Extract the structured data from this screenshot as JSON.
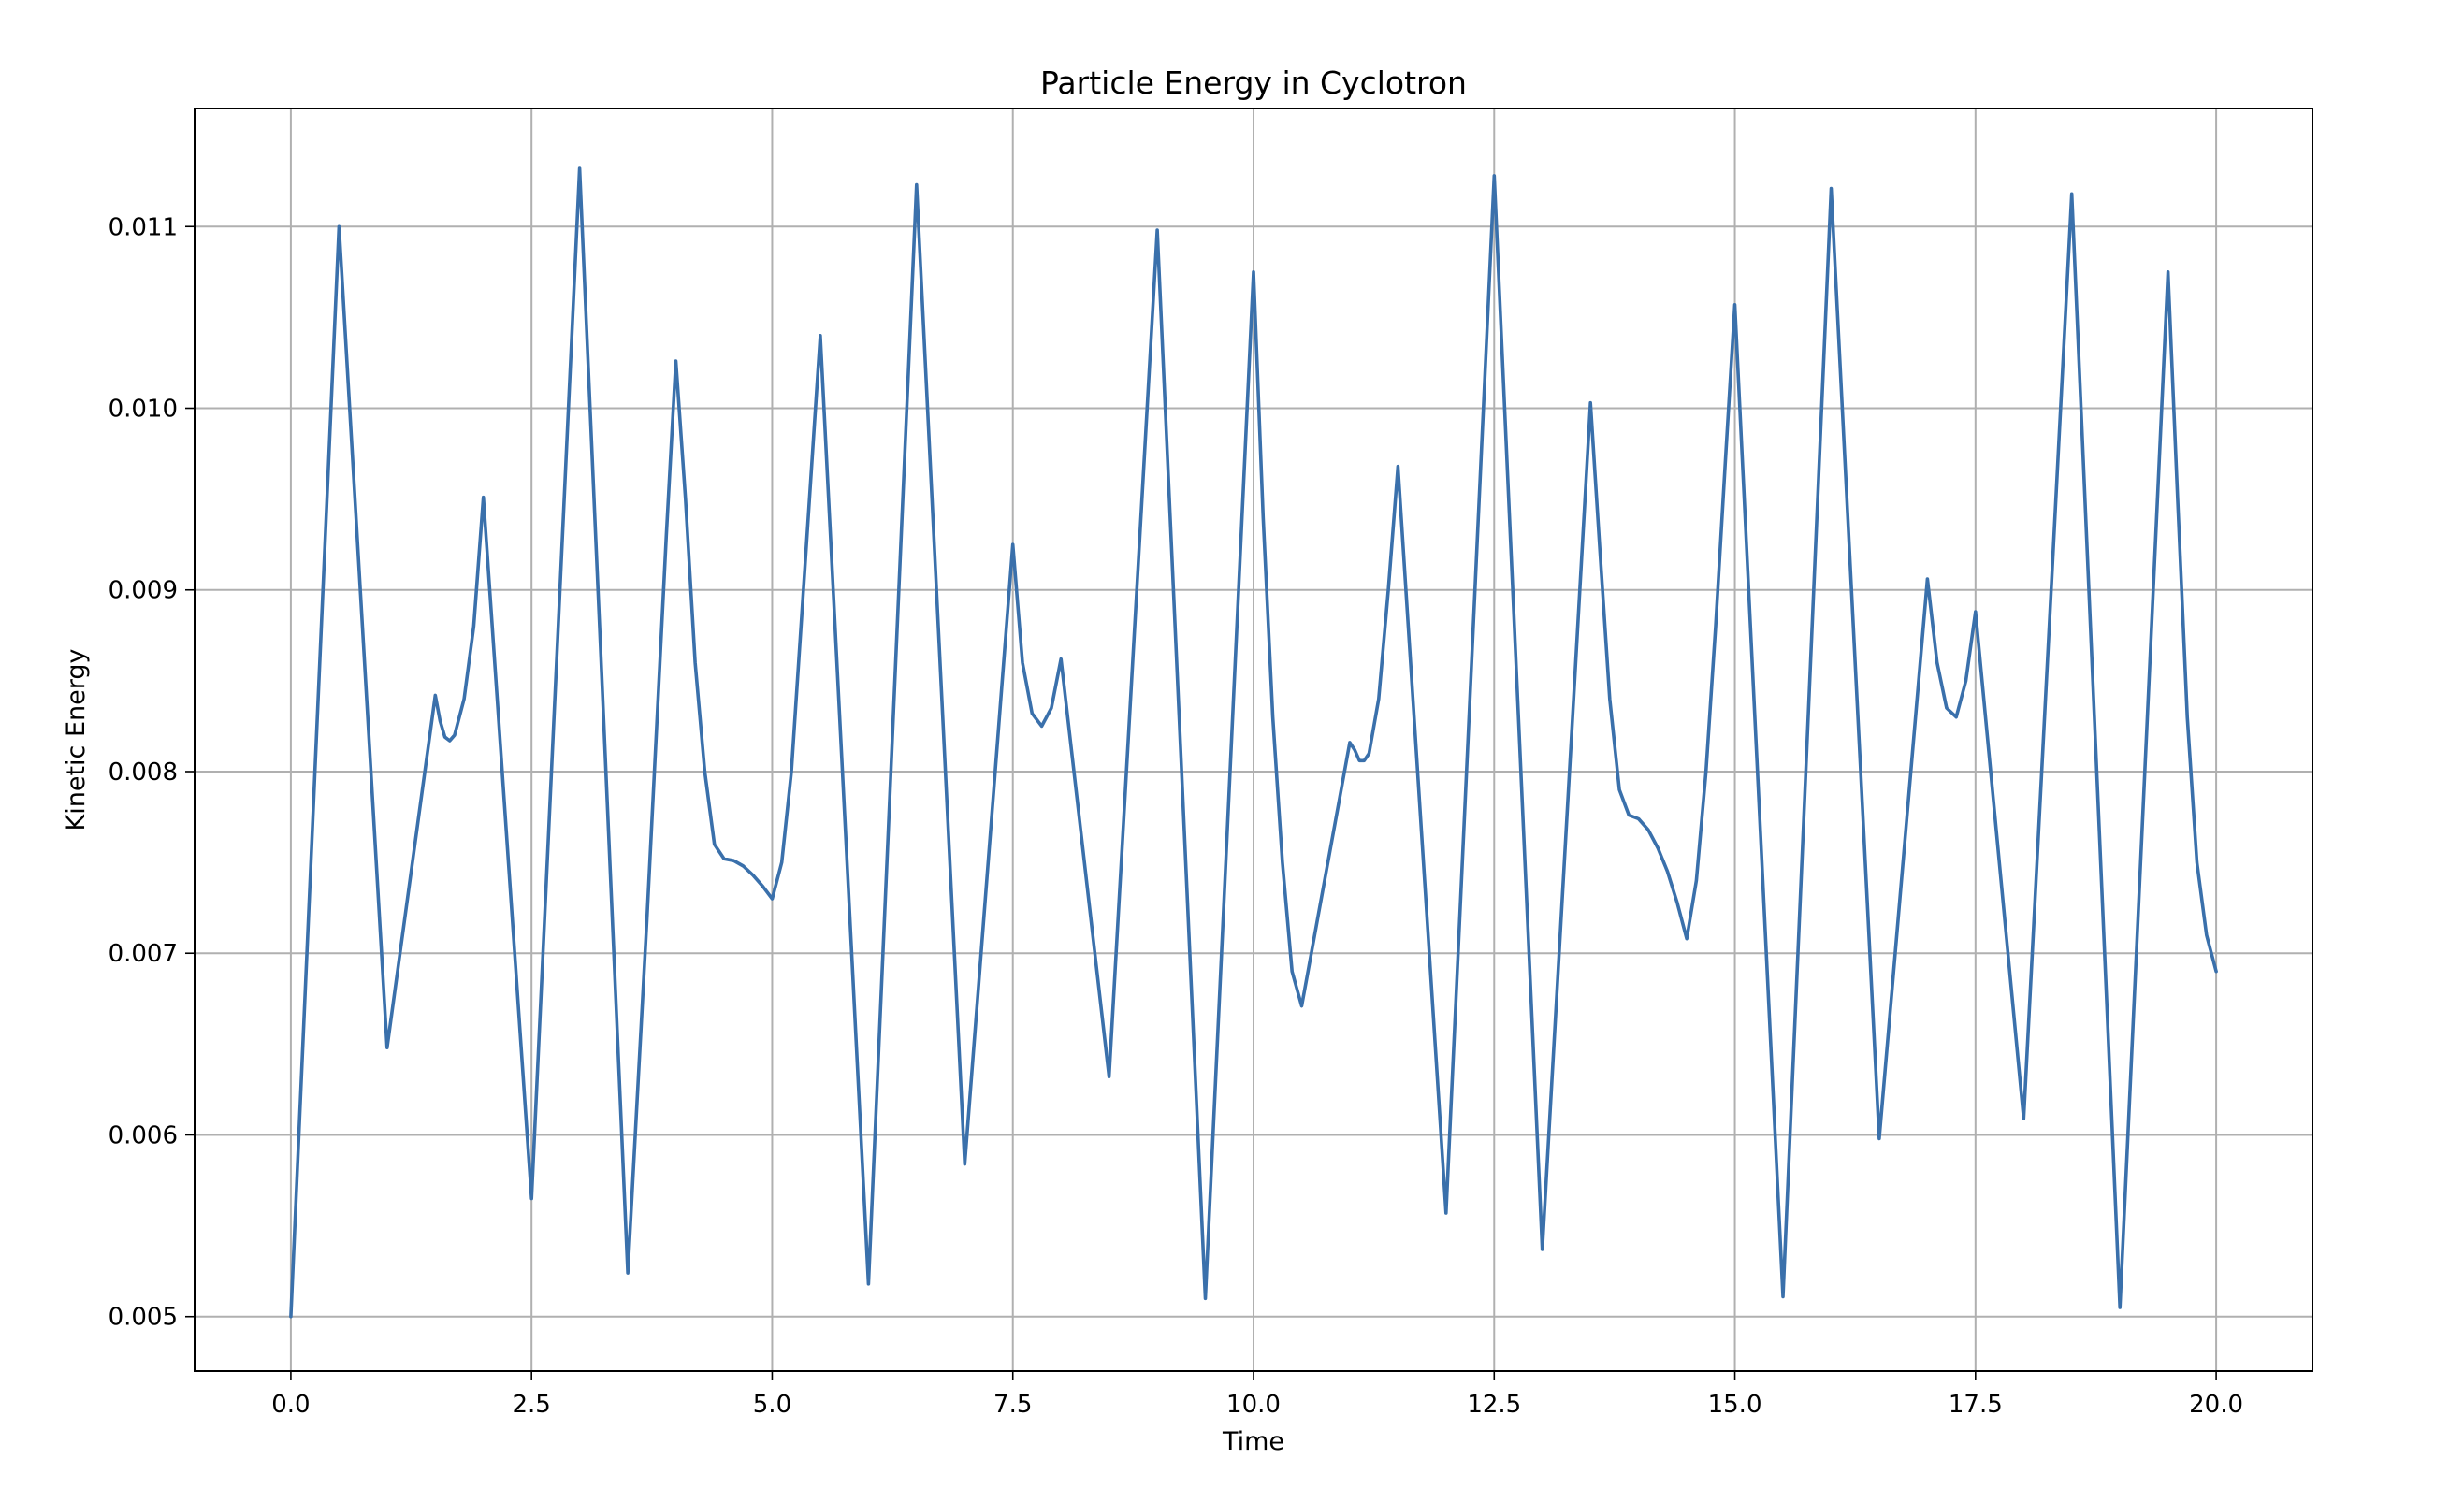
{
  "chart_data": {
    "type": "line",
    "title": "Particle Energy in Cyclotron",
    "xlabel": "Time",
    "ylabel": "Kinetic Energy",
    "xlim": [
      -1.0,
      21.0
    ],
    "ylim": [
      0.0047,
      0.01165
    ],
    "xticks": [
      0.0,
      2.5,
      5.0,
      7.5,
      10.0,
      12.5,
      15.0,
      17.5,
      20.0
    ],
    "xtick_labels": [
      "0.0",
      "2.5",
      "5.0",
      "7.5",
      "10.0",
      "12.5",
      "15.0",
      "17.5",
      "20.0"
    ],
    "yticks": [
      0.005,
      0.006,
      0.007,
      0.008,
      0.009,
      0.01,
      0.011
    ],
    "ytick_labels": [
      "0.005",
      "0.006",
      "0.007",
      "0.008",
      "0.009",
      "0.010",
      "0.011"
    ],
    "grid": true,
    "legend": "none",
    "line_color": "#3a70ab",
    "series": [
      {
        "x": [
          0.0,
          0.5,
          1.0,
          1.5,
          1.55,
          1.6,
          1.65,
          1.7,
          1.8,
          1.9,
          2.0,
          2.5,
          3.0,
          3.5,
          3.7,
          3.9,
          4.0,
          4.1,
          4.2,
          4.3,
          4.4,
          4.5,
          4.6,
          4.7,
          4.8,
          4.9,
          5.0,
          5.1,
          5.2,
          5.3,
          5.4,
          5.5,
          6.0,
          6.5,
          7.0,
          7.5,
          7.6,
          7.7,
          7.8,
          7.9,
          8.0,
          8.5,
          9.0,
          9.5,
          10.0,
          10.1,
          10.2,
          10.3,
          10.4,
          10.5,
          11.0,
          11.05,
          11.1,
          11.15,
          11.2,
          11.3,
          11.4,
          11.5,
          12.0,
          12.5,
          13.0,
          13.5,
          13.6,
          13.7,
          13.8,
          13.9,
          14.0,
          14.1,
          14.2,
          14.3,
          14.4,
          14.5,
          14.6,
          14.7,
          14.8,
          14.9,
          15.0,
          15.5,
          16.0,
          16.5,
          17.0,
          17.1,
          17.2,
          17.3,
          17.4,
          17.5,
          18.0,
          18.5,
          19.0,
          19.5,
          19.6,
          19.7,
          19.8,
          19.9,
          20.0
        ],
        "y": [
          0.005,
          0.011,
          0.00648,
          0.00842,
          0.00828,
          0.00819,
          0.00817,
          0.0082,
          0.0084,
          0.0088,
          0.00951,
          0.00565,
          0.01132,
          0.00524,
          0.0072,
          0.0093,
          0.01026,
          0.0095,
          0.0086,
          0.008,
          0.0076,
          0.00752,
          0.00751,
          0.00748,
          0.00743,
          0.00737,
          0.0073,
          0.0075,
          0.008,
          0.0088,
          0.0096,
          0.0104,
          0.00518,
          0.01123,
          0.00584,
          0.00925,
          0.0086,
          0.00832,
          0.00825,
          0.00835,
          0.00862,
          0.00632,
          0.01098,
          0.0051,
          0.01075,
          0.0094,
          0.0083,
          0.0075,
          0.0069,
          0.00671,
          0.00816,
          0.00812,
          0.00806,
          0.00806,
          0.0081,
          0.0084,
          0.009,
          0.00968,
          0.00557,
          0.01128,
          0.00537,
          0.01003,
          0.0092,
          0.0084,
          0.0079,
          0.00776,
          0.00774,
          0.00768,
          0.00758,
          0.00745,
          0.00728,
          0.00708,
          0.0074,
          0.008,
          0.0088,
          0.0097,
          0.01057,
          0.00511,
          0.01121,
          0.00598,
          0.00906,
          0.0086,
          0.00835,
          0.0083,
          0.0085,
          0.00888,
          0.00609,
          0.01118,
          0.00505,
          0.01075,
          0.0095,
          0.0083,
          0.0075,
          0.0071,
          0.0069
        ]
      }
    ]
  }
}
